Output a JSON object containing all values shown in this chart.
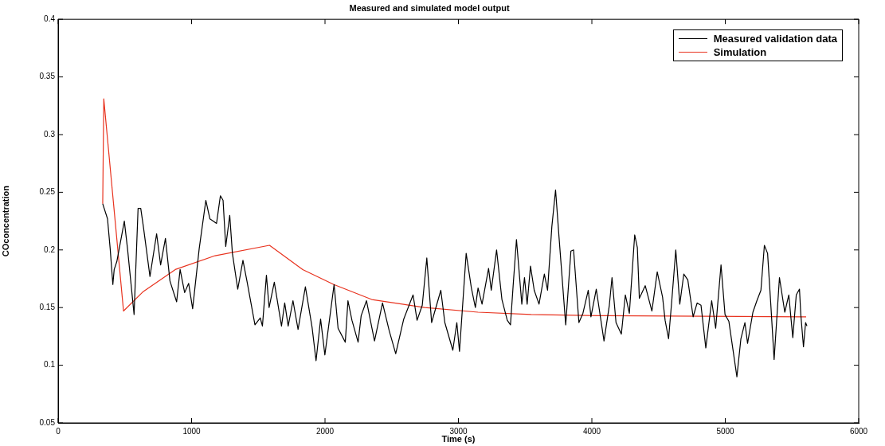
{
  "chart_data": {
    "type": "line",
    "title": "Measured and simulated model output",
    "xlabel": "Time (s)",
    "ylabel": "COconcentration",
    "xlim": [
      0,
      6000
    ],
    "xticks": [
      0,
      1000,
      2000,
      3000,
      4000,
      5000,
      6000
    ],
    "ylim": [
      0.05,
      0.4
    ],
    "yticks": [
      0.05,
      0.1,
      0.15,
      0.2,
      0.25,
      0.3,
      0.35,
      0.4
    ],
    "grid": false,
    "legend": "top right",
    "marker": "none",
    "line_style": "solid",
    "series": [
      {
        "name": "Measured validation data",
        "color": "#000000",
        "x": [
          334,
          370,
          390,
          410,
          420,
          440,
          496,
          520,
          569,
          599,
          619,
          639,
          688,
          738,
          768,
          804,
          838,
          888,
          914,
          948,
          978,
          1008,
          1057,
          1107,
          1137,
          1187,
          1216,
          1236,
          1256,
          1286,
          1306,
          1346,
          1385,
          1415,
          1475,
          1515,
          1531,
          1561,
          1581,
          1620,
          1674,
          1698,
          1724,
          1760,
          1798,
          1853,
          1903,
          1933,
          1967,
          1999,
          2033,
          2068,
          2098,
          2152,
          2172,
          2202,
          2248,
          2271,
          2311,
          2371,
          2431,
          2481,
          2530,
          2590,
          2660,
          2690,
          2729,
          2763,
          2799,
          2868,
          2898,
          2958,
          2988,
          3008,
          3028,
          3058,
          3097,
          3127,
          3147,
          3177,
          3226,
          3246,
          3286,
          3326,
          3366,
          3390,
          3410,
          3435,
          3475,
          3495,
          3515,
          3540,
          3568,
          3604,
          3644,
          3668,
          3700,
          3728,
          3754,
          3804,
          3843,
          3863,
          3903,
          3933,
          3973,
          3993,
          4033,
          4091,
          4131,
          4151,
          4181,
          4221,
          4251,
          4281,
          4301,
          4321,
          4341,
          4356,
          4400,
          4450,
          4490,
          4530,
          4549,
          4575,
          4599,
          4629,
          4659,
          4689,
          4719,
          4759,
          4789,
          4818,
          4854,
          4898,
          4928,
          4968,
          4998,
          5027,
          5057,
          5087,
          5117,
          5147,
          5167,
          5207,
          5237,
          5267,
          5293,
          5317,
          5341,
          5366,
          5406,
          5446,
          5476,
          5506,
          5532,
          5556,
          5566,
          5586,
          5602,
          5612
        ],
        "values": [
          0.24,
          0.227,
          0.201,
          0.17,
          0.183,
          0.19,
          0.225,
          0.201,
          0.144,
          0.236,
          0.236,
          0.22,
          0.177,
          0.214,
          0.187,
          0.21,
          0.173,
          0.155,
          0.183,
          0.163,
          0.171,
          0.149,
          0.201,
          0.243,
          0.227,
          0.223,
          0.247,
          0.243,
          0.203,
          0.23,
          0.197,
          0.166,
          0.191,
          0.173,
          0.135,
          0.141,
          0.134,
          0.178,
          0.15,
          0.172,
          0.134,
          0.154,
          0.134,
          0.156,
          0.131,
          0.168,
          0.133,
          0.104,
          0.14,
          0.109,
          0.139,
          0.17,
          0.132,
          0.12,
          0.156,
          0.139,
          0.12,
          0.143,
          0.156,
          0.121,
          0.154,
          0.13,
          0.11,
          0.14,
          0.161,
          0.139,
          0.152,
          0.193,
          0.137,
          0.165,
          0.137,
          0.113,
          0.137,
          0.112,
          0.146,
          0.197,
          0.167,
          0.15,
          0.167,
          0.153,
          0.184,
          0.165,
          0.2,
          0.157,
          0.139,
          0.135,
          0.169,
          0.209,
          0.153,
          0.176,
          0.153,
          0.186,
          0.165,
          0.153,
          0.179,
          0.165,
          0.22,
          0.252,
          0.211,
          0.135,
          0.199,
          0.2,
          0.137,
          0.145,
          0.165,
          0.142,
          0.166,
          0.121,
          0.152,
          0.176,
          0.137,
          0.127,
          0.161,
          0.145,
          0.179,
          0.213,
          0.202,
          0.158,
          0.169,
          0.147,
          0.181,
          0.159,
          0.139,
          0.123,
          0.156,
          0.2,
          0.153,
          0.179,
          0.174,
          0.142,
          0.154,
          0.152,
          0.115,
          0.156,
          0.132,
          0.187,
          0.144,
          0.138,
          0.114,
          0.09,
          0.123,
          0.137,
          0.119,
          0.146,
          0.156,
          0.165,
          0.204,
          0.197,
          0.153,
          0.105,
          0.176,
          0.146,
          0.161,
          0.124,
          0.161,
          0.166,
          0.144,
          0.116,
          0.137,
          0.134
        ]
      },
      {
        "name": "Simulation",
        "color": "#e8321e",
        "x": [
          334,
          342,
          490,
          639,
          878,
          1176,
          1584,
          1833,
          2066,
          2350,
          2747,
          3147,
          3545,
          4042,
          5606
        ],
        "values": [
          0.24,
          0.331,
          0.147,
          0.164,
          0.183,
          0.195,
          0.204,
          0.183,
          0.17,
          0.157,
          0.15,
          0.146,
          0.144,
          0.143,
          0.142
        ]
      }
    ]
  }
}
